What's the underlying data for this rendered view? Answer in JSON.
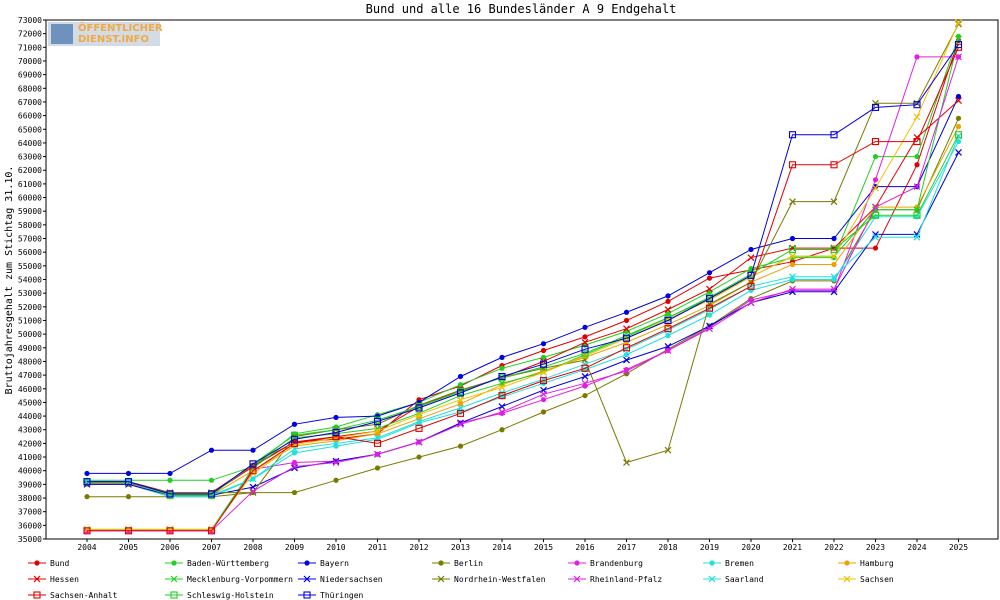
{
  "logo": {
    "line1": "ÖFFENTLICHER",
    "line2": "DIENST.INFO"
  },
  "chart_data": {
    "type": "line",
    "title": "Bund und alle 16 Bundesländer A 9 Endgehalt",
    "xlabel": "",
    "ylabel": "Bruttojahresgehalt zum Stichtag 31.10.",
    "x": [
      2004,
      2005,
      2006,
      2007,
      2008,
      2009,
      2010,
      2011,
      2012,
      2013,
      2014,
      2015,
      2016,
      2017,
      2018,
      2019,
      2020,
      2021,
      2022,
      2023,
      2024,
      2025
    ],
    "ylim": [
      35000,
      73000
    ],
    "ystep": 1000,
    "grid": false,
    "legend": "bottom",
    "series": [
      {
        "name": "Bund",
        "color": "#e00000",
        "marker": "dot",
        "values": [
          39200,
          39200,
          38400,
          38400,
          40400,
          42100,
          42300,
          42700,
          45200,
          46200,
          47700,
          48800,
          49800,
          51000,
          52400,
          54100,
          54700,
          55300,
          56300,
          56300,
          62400,
          71500
        ]
      },
      {
        "name": "Baden-Württemberg",
        "color": "#20d020",
        "marker": "dot",
        "values": [
          39300,
          39300,
          39300,
          39300,
          40300,
          42700,
          43200,
          44100,
          45000,
          46300,
          47500,
          48300,
          49200,
          50200,
          51500,
          53100,
          54800,
          55600,
          55600,
          63000,
          63000,
          71800
        ]
      },
      {
        "name": "Bayern",
        "color": "#0000e0",
        "marker": "dot",
        "values": [
          39800,
          39800,
          39800,
          41500,
          41500,
          43400,
          43900,
          44000,
          45000,
          46900,
          48300,
          49300,
          50500,
          51600,
          52800,
          54500,
          56200,
          57000,
          57000,
          60800,
          60800,
          67400
        ]
      },
      {
        "name": "Berlin",
        "color": "#7a7a00",
        "marker": "dot",
        "values": [
          38100,
          38100,
          38100,
          38100,
          38400,
          38400,
          39300,
          40200,
          41000,
          41800,
          43000,
          44300,
          45500,
          47100,
          48900,
          50600,
          52600,
          53900,
          53900,
          59100,
          59100,
          65800
        ]
      },
      {
        "name": "Brandenburg",
        "color": "#e020e0",
        "marker": "dot",
        "values": [
          35600,
          35600,
          35600,
          35600,
          40100,
          40600,
          40700,
          41200,
          42100,
          43500,
          44200,
          45200,
          46200,
          47400,
          48800,
          50500,
          52500,
          53200,
          53200,
          61300,
          70300,
          70300
        ]
      },
      {
        "name": "Bremen",
        "color": "#20e0e0",
        "marker": "dot",
        "values": [
          39000,
          39000,
          38100,
          38100,
          39400,
          41300,
          41800,
          42300,
          43500,
          44300,
          45400,
          46400,
          47400,
          48500,
          49900,
          51400,
          53200,
          54000,
          54000,
          58600,
          58600,
          64100
        ]
      },
      {
        "name": "Hamburg",
        "color": "#f0a000",
        "marker": "dot",
        "values": [
          39000,
          39000,
          38200,
          38200,
          40000,
          41800,
          42200,
          42700,
          43800,
          44900,
          46300,
          47300,
          48300,
          49400,
          50700,
          52100,
          53800,
          55100,
          55100,
          59300,
          59300,
          65200
        ]
      },
      {
        "name": "Hessen",
        "color": "#e00000",
        "marker": "x",
        "values": [
          39100,
          39100,
          38300,
          38300,
          40300,
          42100,
          42500,
          42900,
          44700,
          45900,
          46800,
          48000,
          49400,
          50400,
          51800,
          53300,
          55600,
          56300,
          56300,
          59300,
          64400,
          67100
        ]
      },
      {
        "name": "Mecklenburg-Vorpommern",
        "color": "#20d020",
        "marker": "x",
        "values": [
          35700,
          35700,
          35700,
          35700,
          40200,
          42400,
          42700,
          43100,
          44200,
          45500,
          46400,
          47200,
          48500,
          49800,
          51200,
          52600,
          54200,
          55700,
          55700,
          59100,
          59100,
          71600
        ]
      },
      {
        "name": "Niedersachsen",
        "color": "#0000e0",
        "marker": "x",
        "values": [
          39000,
          39000,
          38200,
          38200,
          38800,
          40200,
          40700,
          41200,
          42100,
          43500,
          44700,
          45900,
          46900,
          48100,
          49100,
          50600,
          52300,
          53100,
          53100,
          57300,
          57300,
          63300
        ]
      },
      {
        "name": "Nordrhein-Westfalen",
        "color": "#7a7a00",
        "marker": "x",
        "values": [
          39100,
          39100,
          38400,
          38400,
          38400,
          42500,
          43000,
          43400,
          44800,
          45900,
          46800,
          47500,
          48100,
          40600,
          41500,
          52200,
          53800,
          59700,
          59700,
          66900,
          66900,
          72700
        ]
      },
      {
        "name": "Rheinland-Pfalz",
        "color": "#e020e0",
        "marker": "x",
        "values": [
          35600,
          35600,
          35600,
          35600,
          38500,
          40300,
          40600,
          41200,
          42100,
          43400,
          44300,
          45600,
          46400,
          47300,
          48800,
          50400,
          52300,
          53300,
          53300,
          59300,
          60800,
          70300
        ]
      },
      {
        "name": "Saarland",
        "color": "#20e0e0",
        "marker": "x",
        "values": [
          39200,
          39200,
          38200,
          38200,
          39400,
          41600,
          42000,
          42400,
          43600,
          44600,
          45700,
          46700,
          47800,
          48900,
          50300,
          51800,
          53500,
          54200,
          54200,
          57100,
          57100,
          64500
        ]
      },
      {
        "name": "Sachsen",
        "color": "#f0c000",
        "marker": "x",
        "values": [
          35700,
          35700,
          35700,
          35700,
          39800,
          41900,
          42400,
          42900,
          44100,
          45200,
          46100,
          47200,
          48400,
          49700,
          51100,
          52500,
          54200,
          55700,
          55700,
          60700,
          65900,
          72800
        ]
      },
      {
        "name": "Sachsen-Anhalt",
        "color": "#e00000",
        "marker": "square",
        "values": [
          35600,
          35600,
          35600,
          35600,
          40000,
          42000,
          42500,
          42000,
          43100,
          44200,
          45500,
          46600,
          47500,
          49000,
          50400,
          51900,
          53500,
          62400,
          62400,
          64100,
          64100,
          71000
        ]
      },
      {
        "name": "Schleswig-Holstein",
        "color": "#20d020",
        "marker": "square",
        "values": [
          39200,
          39200,
          38200,
          38200,
          40500,
          42600,
          43000,
          43700,
          44700,
          45800,
          46800,
          47600,
          48600,
          49900,
          51200,
          52700,
          54400,
          56200,
          56200,
          58700,
          58700,
          64600
        ]
      },
      {
        "name": "Thüringen",
        "color": "#0000e0",
        "marker": "square",
        "values": [
          39200,
          39200,
          38300,
          38300,
          40500,
          42300,
          42800,
          43600,
          44600,
          45700,
          46900,
          47800,
          48900,
          49700,
          51000,
          52600,
          54300,
          64600,
          64600,
          66600,
          66800,
          71200
        ]
      }
    ]
  }
}
